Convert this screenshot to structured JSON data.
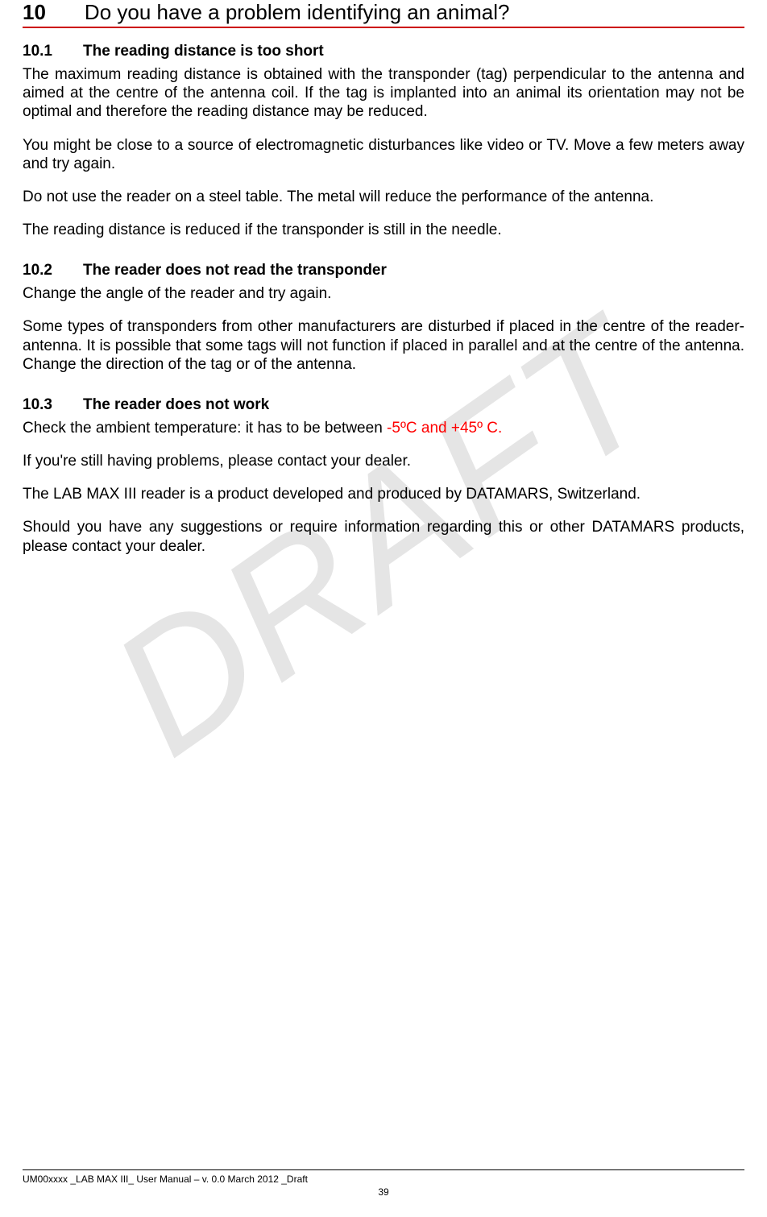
{
  "watermark": "DRAFT",
  "chapter": {
    "num": "10",
    "title": "Do you have a problem identifying an animal?"
  },
  "sections": {
    "s1": {
      "num": "10.1",
      "title": "The reading distance is too short",
      "p1": "The maximum reading distance is obtained with the transponder (tag) perpendicular to the antenna and aimed at the centre of the antenna coil. If the tag is implanted into an animal its orientation may not be optimal and therefore the reading distance may be reduced.",
      "p2": "You might be close to a source of electromagnetic disturbances like video or TV. Move a few meters away and try again.",
      "p3": "Do not use the reader on a steel table. The metal will reduce the performance of the antenna.",
      "p4": "The reading distance is reduced if the transponder is still in the needle."
    },
    "s2": {
      "num": "10.2",
      "title": "The reader does not read the transponder",
      "p1": "Change the angle of the reader and try again.",
      "p2": "Some types of transponders from other manufacturers are disturbed if placed in the centre of the reader-antenna. It is possible that some tags will not function if placed in parallel and at the centre of the antenna. Change the direction of the tag or of the antenna."
    },
    "s3": {
      "num": "10.3",
      "title": "The reader does not work",
      "p1a": "Check the ambient temperature: it has to be between ",
      "p1b": "-5ºC and +45º C.",
      "p2": "If you're still having problems, please contact your dealer.",
      "p3": "The LAB MAX III reader is a product developed and produced by DATAMARS, Switzerland.",
      "p4": "Should you have any suggestions or require information regarding this or other DATAMARS products, please contact your dealer."
    }
  },
  "footer": {
    "line": "UM00xxxx _LAB MAX III_ User Manual – v. 0.0 March 2012 _Draft",
    "page": "39"
  }
}
